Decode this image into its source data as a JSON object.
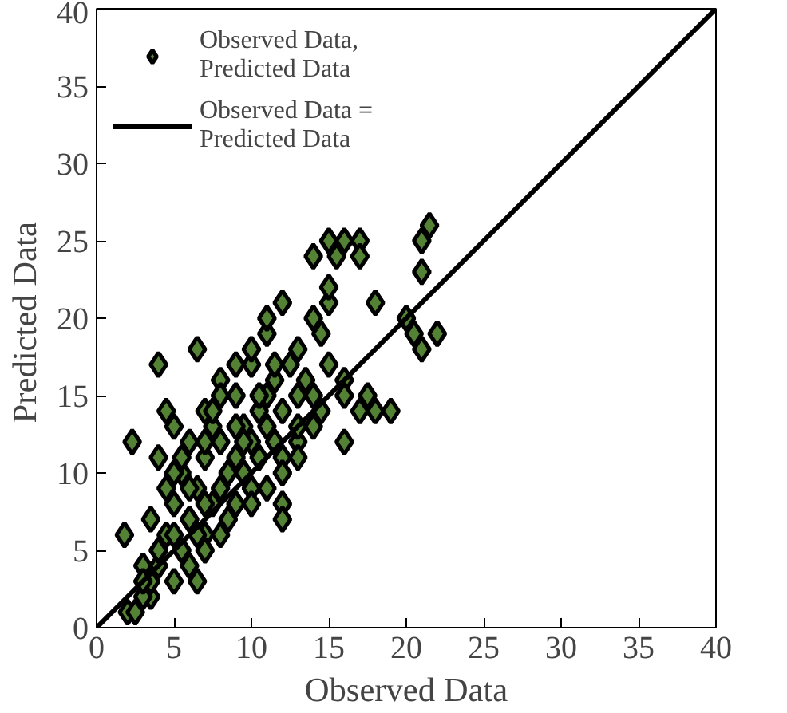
{
  "chart_data": {
    "type": "scatter",
    "xlabel": "Observed Data",
    "ylabel": "Predicted  Data",
    "xlim": [
      0,
      40
    ],
    "ylim": [
      0,
      40
    ],
    "xticks": [
      0,
      5,
      10,
      15,
      20,
      25,
      30,
      35,
      40
    ],
    "yticks": [
      0,
      5,
      10,
      15,
      20,
      25,
      30,
      35,
      40
    ],
    "grid": false,
    "legend": "top left",
    "series": [
      {
        "name": "Observed Data,\nPredicted Data",
        "marker": "diamond",
        "color": "#548235",
        "x": [
          1.8,
          2.3,
          2,
          2.5,
          3,
          3.5,
          4,
          4,
          4.5,
          3.5,
          4,
          5,
          6.5,
          3,
          3.5,
          4,
          4.5,
          5,
          5,
          5.5,
          5.5,
          6,
          6,
          6,
          6.5,
          6.5,
          7,
          7,
          7,
          7.5,
          7.5,
          8,
          8,
          8,
          8.5,
          8.5,
          9,
          9,
          9,
          9.5,
          9.5,
          10,
          10,
          10,
          10.5,
          10.5,
          11,
          11,
          11,
          11.5,
          11.5,
          12,
          12,
          12,
          12,
          12.5,
          13,
          13,
          13,
          13.5,
          14,
          14,
          14,
          14.5,
          14.5,
          15,
          15,
          15,
          15.5,
          16,
          16,
          16,
          17,
          17,
          17,
          17.5,
          18,
          18,
          19,
          20,
          20.5,
          21,
          21,
          21,
          21.5,
          22,
          5,
          6,
          7,
          8,
          9,
          4.5,
          5.5,
          6.5,
          7.5,
          8.5,
          9.5,
          10.5,
          11.5,
          3,
          4,
          5,
          6,
          7,
          8,
          9,
          10,
          11,
          12,
          13,
          14,
          16,
          15,
          7,
          8,
          10,
          11,
          12,
          13
        ],
        "values": [
          6,
          12,
          1,
          1,
          4,
          2,
          17,
          11,
          14,
          7,
          5,
          13,
          18,
          2,
          3,
          4,
          6,
          8,
          3,
          5,
          10,
          4,
          7,
          12,
          9,
          3,
          6,
          11,
          14,
          8,
          13,
          9,
          12,
          16,
          10,
          7,
          11,
          15,
          8,
          13,
          10,
          12,
          17,
          9,
          14,
          11,
          13,
          19,
          15,
          16,
          12,
          21,
          14,
          8,
          7,
          17,
          12,
          18,
          15,
          16,
          24,
          20,
          13,
          19,
          14,
          25,
          21,
          17,
          24,
          16,
          15,
          25,
          25,
          24,
          14,
          15,
          21,
          14,
          14,
          20,
          19,
          18,
          23,
          25,
          26,
          19,
          10,
          7,
          8,
          12,
          13,
          9,
          11,
          6,
          14,
          10,
          12,
          15,
          17,
          3,
          5,
          6,
          9,
          12,
          15,
          17,
          18,
          20,
          11,
          13,
          15,
          12,
          22,
          5,
          6,
          8,
          9,
          10,
          11
        ]
      },
      {
        "name": "Observed Data =\nPredicted Data",
        "type": "line",
        "color": "#000000",
        "line_style": "solid",
        "x": [
          0,
          40
        ],
        "values": [
          0,
          40
        ]
      }
    ]
  }
}
